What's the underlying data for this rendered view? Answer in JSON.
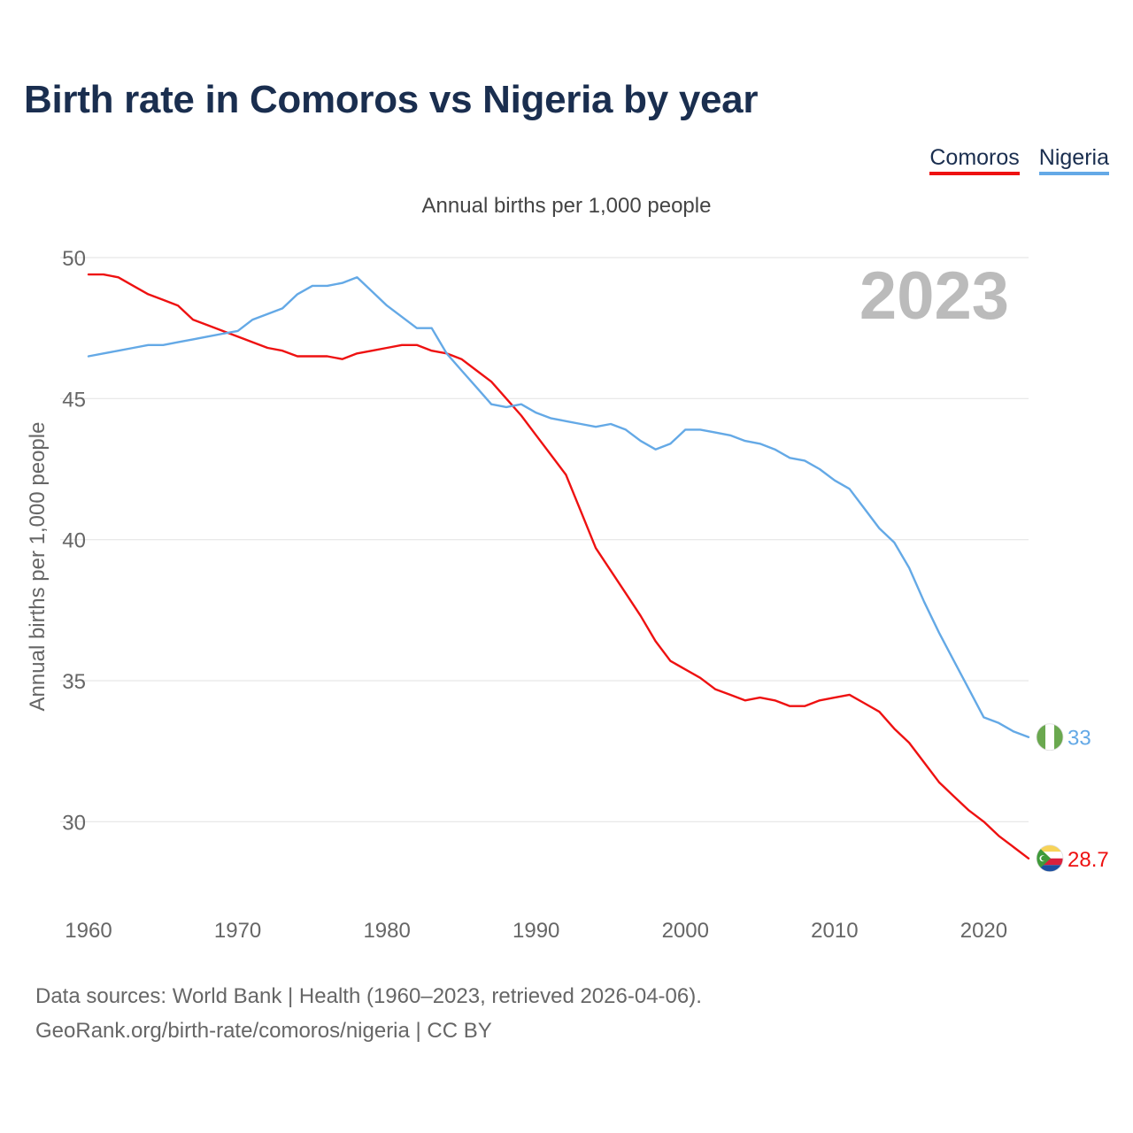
{
  "title": "Birth rate in Comoros vs Nigeria by year",
  "legend": [
    {
      "label": "Comoros",
      "color": "#ee1111"
    },
    {
      "label": "Nigeria",
      "color": "#64a9e6"
    }
  ],
  "source": {
    "line1": "Data sources: World Bank | Health (1960–2023, retrieved 2026-04-06).",
    "line2": "GeoRank.org/birth-rate/comoros/nigeria | CC BY"
  },
  "chart_data": {
    "type": "line",
    "title": "Annual births per 1,000 people",
    "xlabel": "",
    "ylabel": "Annual births per 1,000 people",
    "xlim": [
      1960,
      2023
    ],
    "ylim": [
      27.5,
      50
    ],
    "yticks": [
      30,
      35,
      40,
      45,
      50
    ],
    "xticks": [
      1960,
      1970,
      1980,
      1990,
      2000,
      2010,
      2020
    ],
    "grid": true,
    "year_label": "2023",
    "x": [
      1960,
      1961,
      1962,
      1963,
      1964,
      1965,
      1966,
      1967,
      1968,
      1969,
      1970,
      1971,
      1972,
      1973,
      1974,
      1975,
      1976,
      1977,
      1978,
      1979,
      1980,
      1981,
      1982,
      1983,
      1984,
      1985,
      1986,
      1987,
      1988,
      1989,
      1990,
      1991,
      1992,
      1993,
      1994,
      1995,
      1996,
      1997,
      1998,
      1999,
      2000,
      2001,
      2002,
      2003,
      2004,
      2005,
      2006,
      2007,
      2008,
      2009,
      2010,
      2011,
      2012,
      2013,
      2014,
      2015,
      2016,
      2017,
      2018,
      2019,
      2020,
      2021,
      2022,
      2023
    ],
    "series": [
      {
        "name": "Comoros",
        "color": "#ee1111",
        "end_label": "28.7",
        "values": [
          49.4,
          49.4,
          49.3,
          49.0,
          48.7,
          48.5,
          48.3,
          47.8,
          47.6,
          47.4,
          47.2,
          47.0,
          46.8,
          46.7,
          46.5,
          46.5,
          46.5,
          46.4,
          46.6,
          46.7,
          46.8,
          46.9,
          46.9,
          46.7,
          46.6,
          46.4,
          46.0,
          45.6,
          45.0,
          44.4,
          43.7,
          43.0,
          42.3,
          41.0,
          39.7,
          38.9,
          38.1,
          37.3,
          36.4,
          35.7,
          35.4,
          35.1,
          34.7,
          34.5,
          34.3,
          34.4,
          34.3,
          34.1,
          34.1,
          34.3,
          34.4,
          34.5,
          34.2,
          33.9,
          33.3,
          32.8,
          32.1,
          31.4,
          30.9,
          30.4,
          30.0,
          29.5,
          29.1,
          28.7
        ]
      },
      {
        "name": "Nigeria",
        "color": "#64a9e6",
        "end_label": "33",
        "values": [
          46.5,
          46.6,
          46.7,
          46.8,
          46.9,
          46.9,
          47.0,
          47.1,
          47.2,
          47.3,
          47.4,
          47.8,
          48.0,
          48.2,
          48.7,
          49.0,
          49.0,
          49.1,
          49.3,
          48.8,
          48.3,
          47.9,
          47.5,
          47.5,
          46.6,
          46.0,
          45.4,
          44.8,
          44.7,
          44.8,
          44.5,
          44.3,
          44.2,
          44.1,
          44.0,
          44.1,
          43.9,
          43.5,
          43.2,
          43.4,
          43.9,
          43.9,
          43.8,
          43.7,
          43.5,
          43.4,
          43.2,
          42.9,
          42.8,
          42.5,
          42.1,
          41.8,
          41.1,
          40.4,
          39.9,
          39.0,
          37.8,
          36.7,
          35.7,
          34.7,
          33.7,
          33.5,
          33.2,
          33.0
        ]
      }
    ]
  }
}
